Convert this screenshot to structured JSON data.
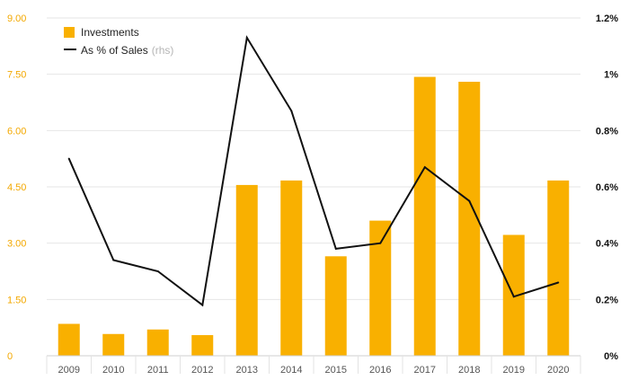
{
  "chart_data": {
    "type": "bar",
    "categories": [
      "2009",
      "2010",
      "2011",
      "2012",
      "2013",
      "2014",
      "2015",
      "2016",
      "2017",
      "2018",
      "2019",
      "2020"
    ],
    "series": [
      {
        "name": "Investments",
        "type": "bar",
        "axis": "left",
        "color": "#f9b000",
        "values": [
          0.85,
          0.58,
          0.7,
          0.55,
          4.55,
          4.67,
          2.65,
          3.6,
          7.43,
          7.3,
          3.22,
          4.67
        ]
      },
      {
        "name": "As % of Sales",
        "name_suffix": "(rhs)",
        "type": "line",
        "axis": "right",
        "color": "#111111",
        "values": [
          0.7,
          0.34,
          0.3,
          0.18,
          1.13,
          0.87,
          0.38,
          0.4,
          0.67,
          0.55,
          0.21,
          0.26
        ]
      }
    ],
    "ylim_left": [
      0,
      9
    ],
    "yticks_left": [
      "0",
      "1.50",
      "3.00",
      "4.50",
      "6.00",
      "7.50",
      "9.00"
    ],
    "ylim_right": [
      0,
      1.2
    ],
    "yticks_right": [
      "0%",
      "0.2%",
      "0.4%",
      "0.6%",
      "0.8%",
      "1%",
      "1.2%"
    ],
    "grid": true,
    "legend_position": "top-left",
    "title": "",
    "xlabel": "",
    "ylabel": ""
  }
}
